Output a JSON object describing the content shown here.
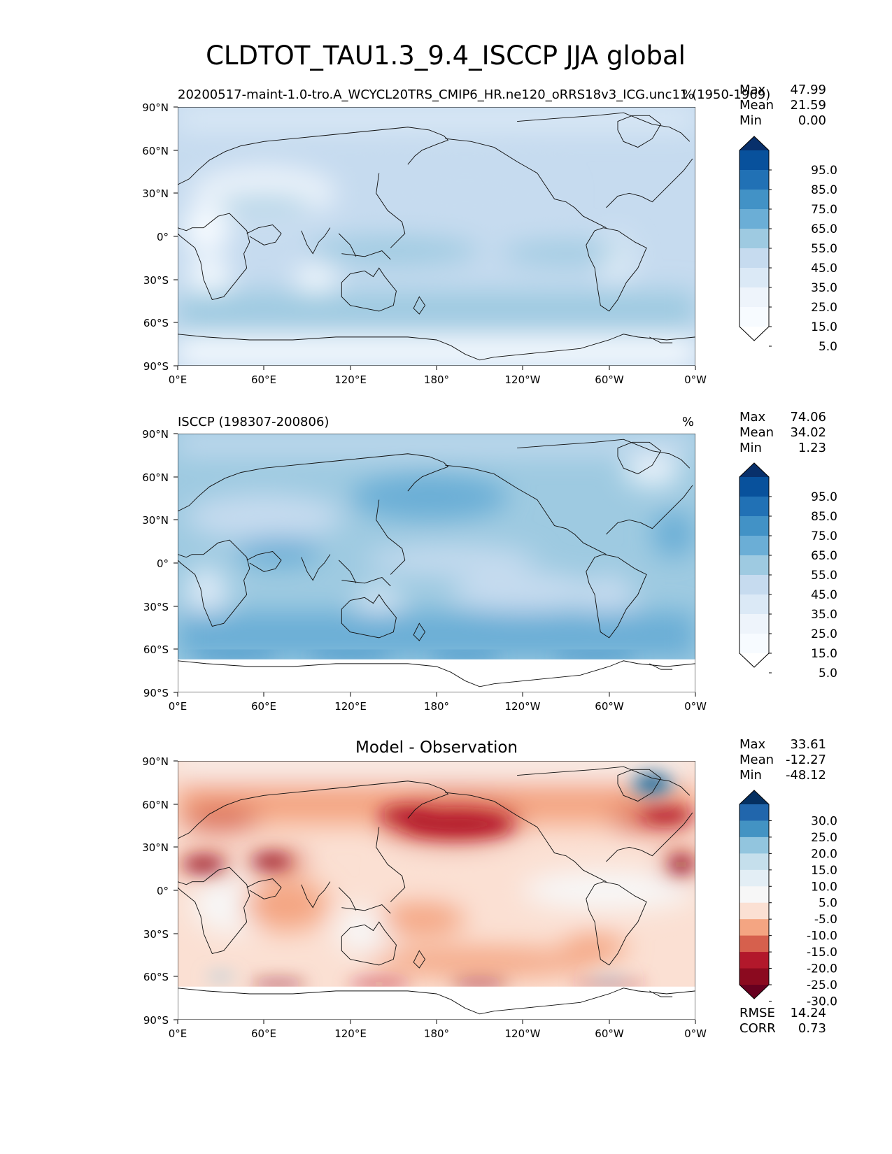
{
  "figure": {
    "title": "CLDTOT_TAU1.3_9.4_ISCCP JJA global"
  },
  "colors": {
    "continent_outline": "#111111",
    "frame": "#000000",
    "missing": "#ffffff"
  },
  "panels": [
    {
      "left_label": "20200517-maint-1.0-tro.A_WCYCL20TRS_CMIP6_HR.ne120_oRRS18v3_ICG.unc11 (1950-1969)",
      "center_label": "",
      "units": "%",
      "stats": [
        [
          "Max",
          "47.99"
        ],
        [
          "Mean",
          "21.59"
        ],
        [
          "Min",
          "0.00"
        ]
      ],
      "extra_stats": []
    },
    {
      "left_label": "ISCCP (198307-200806)",
      "center_label": "",
      "units": "%",
      "stats": [
        [
          "Max",
          "74.06"
        ],
        [
          "Mean",
          "34.02"
        ],
        [
          "Min",
          "1.23"
        ]
      ],
      "extra_stats": []
    },
    {
      "left_label": "",
      "center_label": "Model - Observation",
      "units": "",
      "stats": [
        [
          "Max",
          "33.61"
        ],
        [
          "Mean",
          "-12.27"
        ],
        [
          "Min",
          "-48.12"
        ]
      ],
      "extra_stats": [
        [
          "RMSE",
          "14.24"
        ],
        [
          "CORR",
          "0.73"
        ]
      ]
    }
  ],
  "axes": {
    "lat_ticks": [
      "90°N",
      "60°N",
      "30°N",
      "0°",
      "30°S",
      "60°S",
      "90°S"
    ],
    "lon_ticks": [
      "0°E",
      "60°E",
      "120°E",
      "180°",
      "120°W",
      "60°W",
      "0°W"
    ]
  },
  "colorbars": {
    "sequential": {
      "labels": [
        "95.0",
        "85.0",
        "75.0",
        "65.0",
        "55.0",
        "45.0",
        "35.0",
        "25.0",
        "15.0",
        "5.0"
      ],
      "colors": [
        "#08306b",
        "#08519c",
        "#2171b5",
        "#4292c6",
        "#6baed6",
        "#9ecae1",
        "#c6dbef",
        "#dbe9f6",
        "#eef4fb",
        "#f7fbff",
        "#ffffff"
      ]
    },
    "diverging": {
      "labels": [
        "30.0",
        "25.0",
        "20.0",
        "15.0",
        "10.0",
        "5.0",
        "-5.0",
        "-10.0",
        "-15.0",
        "-20.0",
        "-25.0",
        "-30.0"
      ],
      "colors": [
        "#053061",
        "#2166ac",
        "#4393c3",
        "#92c5de",
        "#c5dfec",
        "#e3eef5",
        "#f7f7f7",
        "#fbe0d3",
        "#f4a582",
        "#d6604d",
        "#b2182b",
        "#8b0a1f",
        "#67001f"
      ]
    }
  }
}
